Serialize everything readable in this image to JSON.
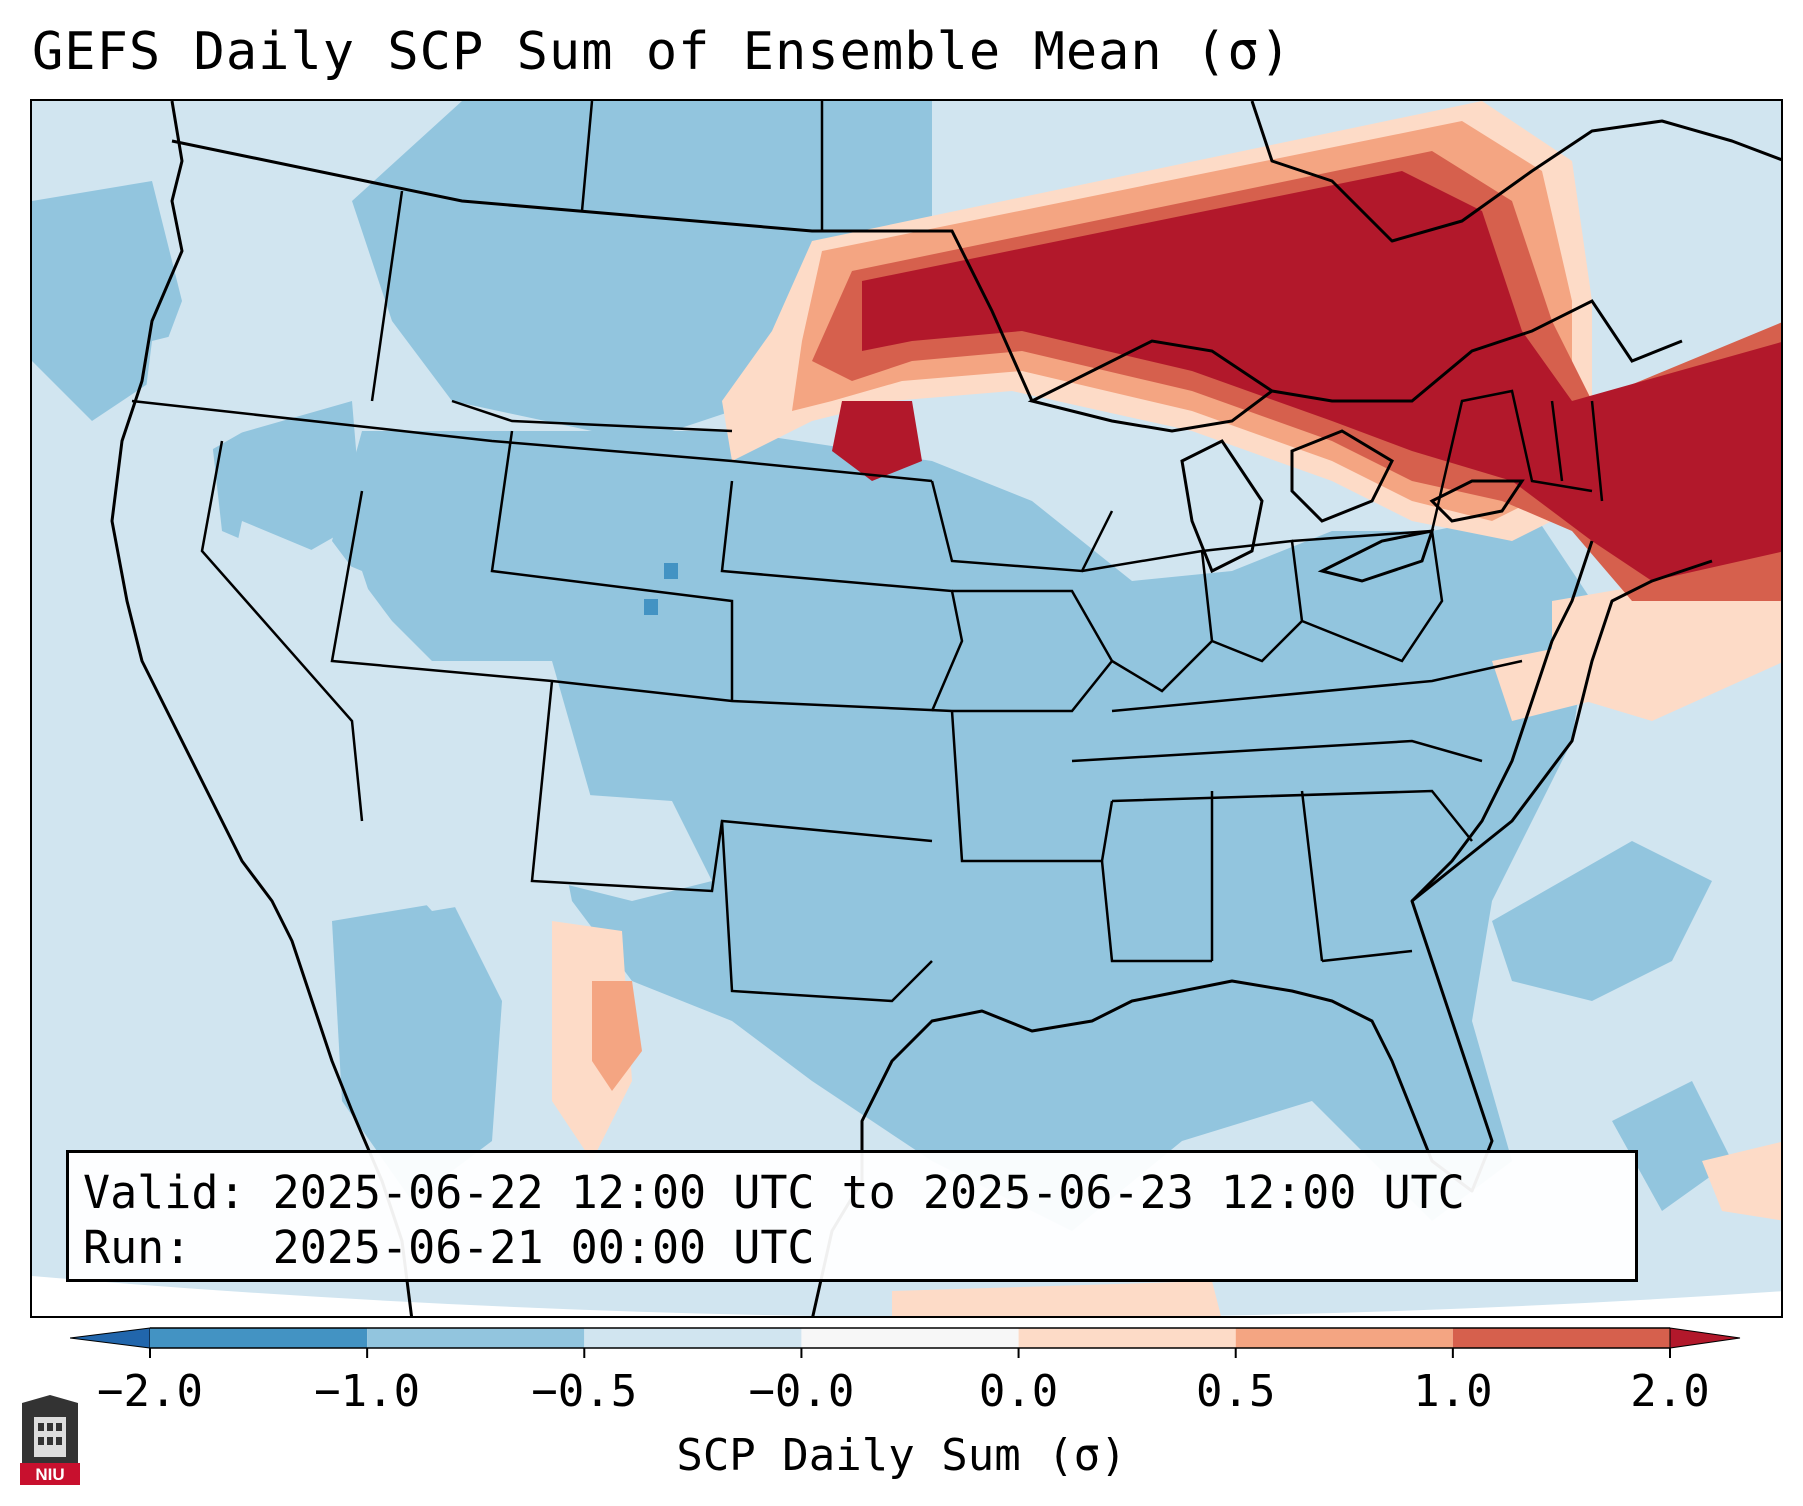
{
  "title": "GEFS Daily SCP Sum of Ensemble Mean (σ)",
  "info": {
    "valid_label": "Valid:",
    "valid_value": "2025-06-22 12:00 UTC to 2025-06-23 12:00 UTC",
    "run_label": "Run:",
    "run_value": "2025-06-21 00:00 UTC"
  },
  "colorbar": {
    "label": "SCP Daily Sum (σ)",
    "ticks": [
      "−2.0",
      "−1.0",
      "−0.5",
      "−0.0",
      "0.0",
      "0.5",
      "1.0",
      "2.0"
    ],
    "bins": [
      {
        "range": "-2.0 to -1.0",
        "color": "#4393c3"
      },
      {
        "range": "-1.0 to -0.5",
        "color": "#92c5de"
      },
      {
        "range": "-0.5 to -0.0",
        "color": "#d1e5f0"
      },
      {
        "range": "-0.0 to 0.0",
        "color": "#f7f7f7"
      },
      {
        "range": "0.0 to 0.5",
        "color": "#fddbc7"
      },
      {
        "range": "0.5 to 1.0",
        "color": "#f4a582"
      },
      {
        "range": "1.0 to 2.0",
        "color": "#d6604d"
      }
    ],
    "under_color": "#2166ac",
    "over_color": "#b2182b"
  },
  "map": {
    "ocean_color": "#d1e5f0",
    "strong_positive_color": "#b2182b",
    "positive_color": "#d6604d",
    "weak_positive_color": "#f4a582",
    "faint_positive_color": "#fddbc7",
    "negative_color": "#92c5de",
    "strong_negative_color": "#4393c3",
    "border_color": "#000000"
  },
  "logo": {
    "text": "NIU",
    "color": "#c8102e"
  }
}
